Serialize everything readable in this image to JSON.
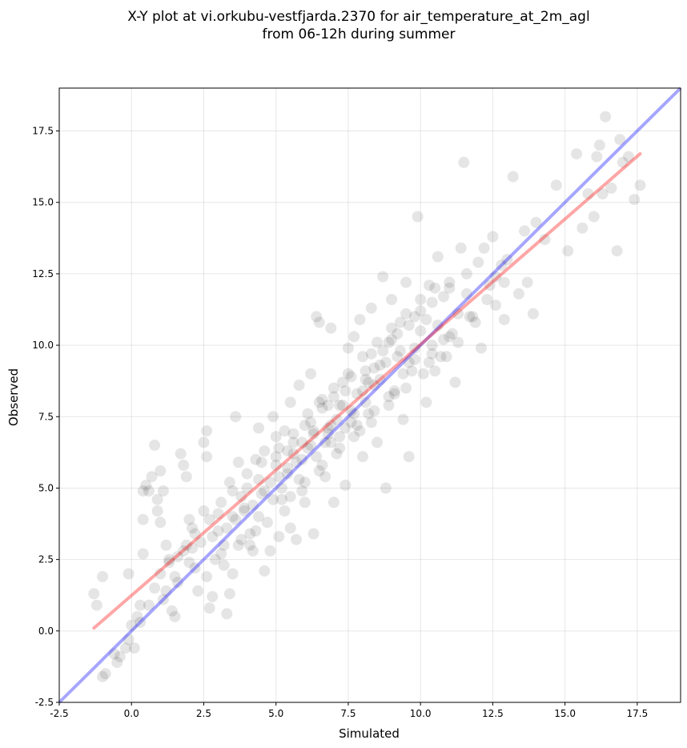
{
  "chart_data": {
    "type": "scatter",
    "title": "X-Y plot at vi.orkubu-vestfjarda.2370 for air_temperature_at_2m_agl",
    "subtitle": "from 06-12h during summer",
    "xlabel": "Simulated",
    "ylabel": "Observed",
    "xlim": [
      -2.5,
      19.0
    ],
    "ylim": [
      -2.5,
      19.0
    ],
    "xticks": [
      "-2.5",
      "0.0",
      "2.5",
      "5.0",
      "7.5",
      "10.0",
      "12.5",
      "15.0",
      "17.5"
    ],
    "yticks": [
      "-2.5",
      "0.0",
      "2.5",
      "5.0",
      "7.5",
      "10.0",
      "12.5",
      "15.0",
      "17.5"
    ],
    "grid": true,
    "legend": "none",
    "marker_color": "#000000",
    "marker_alpha": 0.1,
    "reference_line": {
      "name": "1:1 line",
      "color": "#0000ff",
      "alpha": 0.35,
      "x": [
        -2.5,
        19.0
      ],
      "y": [
        -2.5,
        19.0
      ]
    },
    "regression_line": {
      "name": "linear fit",
      "color": "#ff0000",
      "alpha": 0.35,
      "x": [
        -1.3,
        17.6
      ],
      "y": [
        0.1,
        16.7
      ]
    },
    "series": [
      {
        "points": [
          [
            -1.3,
            1.3
          ],
          [
            -1.2,
            0.9
          ],
          [
            -1.0,
            1.9
          ],
          [
            -0.9,
            -1.5
          ],
          [
            -1.0,
            -1.6
          ],
          [
            -0.6,
            -0.8
          ],
          [
            -0.5,
            -1.1
          ],
          [
            -0.4,
            -0.9
          ],
          [
            -0.2,
            -0.6
          ],
          [
            -0.1,
            -0.3
          ],
          [
            0.0,
            0.2
          ],
          [
            -0.1,
            2.0
          ],
          [
            0.1,
            -0.6
          ],
          [
            0.2,
            0.5
          ],
          [
            0.3,
            0.9
          ],
          [
            0.4,
            2.7
          ],
          [
            0.4,
            3.9
          ],
          [
            0.4,
            4.9
          ],
          [
            0.5,
            5.1
          ],
          [
            0.6,
            4.9
          ],
          [
            0.7,
            5.4
          ],
          [
            0.8,
            6.5
          ],
          [
            0.9,
            4.6
          ],
          [
            0.9,
            4.2
          ],
          [
            1.0,
            3.8
          ],
          [
            1.0,
            5.6
          ],
          [
            1.1,
            4.9
          ],
          [
            1.2,
            3.0
          ],
          [
            1.3,
            2.4
          ],
          [
            1.2,
            1.4
          ],
          [
            1.4,
            0.7
          ],
          [
            1.5,
            0.5
          ],
          [
            1.6,
            2.6
          ],
          [
            1.7,
            6.2
          ],
          [
            1.8,
            5.8
          ],
          [
            1.9,
            5.4
          ],
          [
            2.0,
            3.9
          ],
          [
            2.1,
            2.9
          ],
          [
            2.2,
            2.2
          ],
          [
            2.3,
            1.4
          ],
          [
            2.5,
            6.6
          ],
          [
            2.6,
            7.0
          ],
          [
            2.6,
            6.1
          ],
          [
            2.7,
            0.8
          ],
          [
            2.8,
            1.2
          ],
          [
            3.0,
            3.5
          ],
          [
            3.1,
            2.7
          ],
          [
            3.2,
            3.0
          ],
          [
            3.3,
            0.6
          ],
          [
            3.4,
            1.3
          ],
          [
            3.5,
            2.0
          ],
          [
            3.6,
            7.5
          ],
          [
            3.7,
            5.9
          ],
          [
            3.8,
            4.7
          ],
          [
            3.9,
            4.2
          ],
          [
            4.1,
            3.4
          ],
          [
            4.2,
            2.8
          ],
          [
            4.3,
            6.0
          ],
          [
            4.4,
            7.1
          ],
          [
            4.5,
            4.8
          ],
          [
            4.6,
            2.1
          ],
          [
            4.8,
            2.8
          ],
          [
            4.9,
            7.5
          ],
          [
            5.0,
            6.8
          ],
          [
            5.1,
            3.3
          ],
          [
            5.2,
            4.6
          ],
          [
            5.4,
            5.7
          ],
          [
            5.5,
            8.0
          ],
          [
            5.5,
            3.6
          ],
          [
            5.7,
            3.2
          ],
          [
            5.8,
            8.6
          ],
          [
            6.0,
            4.5
          ],
          [
            6.1,
            6.4
          ],
          [
            6.2,
            9.0
          ],
          [
            6.3,
            3.4
          ],
          [
            6.4,
            11.0
          ],
          [
            6.5,
            10.8
          ],
          [
            6.6,
            8.1
          ],
          [
            6.7,
            5.4
          ],
          [
            6.8,
            7.1
          ],
          [
            6.9,
            10.6
          ],
          [
            7.0,
            4.5
          ],
          [
            7.2,
            6.8
          ],
          [
            7.3,
            8.7
          ],
          [
            7.4,
            5.1
          ],
          [
            7.5,
            9.9
          ],
          [
            7.6,
            7.3
          ],
          [
            7.7,
            10.3
          ],
          [
            7.9,
            10.9
          ],
          [
            8.0,
            6.1
          ],
          [
            8.1,
            8.8
          ],
          [
            8.2,
            7.6
          ],
          [
            8.3,
            11.3
          ],
          [
            8.4,
            9.2
          ],
          [
            8.5,
            6.6
          ],
          [
            8.7,
            12.4
          ],
          [
            8.8,
            5.0
          ],
          [
            8.9,
            10.1
          ],
          [
            9.0,
            11.6
          ],
          [
            9.1,
            8.3
          ],
          [
            9.3,
            10.8
          ],
          [
            9.4,
            7.4
          ],
          [
            9.5,
            12.2
          ],
          [
            9.6,
            6.1
          ],
          [
            9.8,
            9.5
          ],
          [
            9.9,
            14.5
          ],
          [
            10.0,
            11.2
          ],
          [
            10.2,
            8.0
          ],
          [
            10.3,
            12.1
          ],
          [
            10.4,
            10.0
          ],
          [
            10.5,
            9.1
          ],
          [
            10.6,
            13.1
          ],
          [
            10.8,
            11.7
          ],
          [
            10.9,
            9.6
          ],
          [
            11.0,
            12.2
          ],
          [
            11.1,
            10.4
          ],
          [
            11.2,
            8.7
          ],
          [
            11.4,
            13.4
          ],
          [
            11.5,
            16.4
          ],
          [
            11.6,
            12.5
          ],
          [
            11.8,
            11.0
          ],
          [
            12.0,
            12.9
          ],
          [
            12.1,
            9.9
          ],
          [
            12.2,
            13.4
          ],
          [
            12.4,
            12.1
          ],
          [
            12.5,
            13.8
          ],
          [
            12.6,
            11.4
          ],
          [
            12.8,
            12.8
          ],
          [
            12.9,
            10.9
          ],
          [
            13.0,
            13.0
          ],
          [
            13.2,
            15.9
          ],
          [
            13.4,
            11.8
          ],
          [
            13.6,
            14.0
          ],
          [
            13.7,
            12.2
          ],
          [
            13.9,
            11.1
          ],
          [
            14.0,
            14.3
          ],
          [
            14.3,
            13.7
          ],
          [
            14.7,
            15.6
          ],
          [
            15.1,
            13.3
          ],
          [
            15.4,
            16.7
          ],
          [
            15.6,
            14.1
          ],
          [
            15.8,
            15.3
          ],
          [
            16.0,
            14.5
          ],
          [
            16.1,
            16.6
          ],
          [
            16.2,
            17.0
          ],
          [
            16.3,
            15.3
          ],
          [
            16.4,
            18.0
          ],
          [
            16.6,
            15.5
          ],
          [
            16.8,
            13.3
          ],
          [
            17.0,
            16.4
          ],
          [
            17.2,
            16.6
          ],
          [
            17.4,
            15.1
          ],
          [
            17.6,
            15.6
          ],
          [
            16.9,
            17.2
          ],
          [
            3.0,
            4.1
          ],
          [
            3.4,
            5.2
          ],
          [
            4.0,
            5.0
          ],
          [
            4.6,
            6.3
          ],
          [
            5.0,
            5.8
          ],
          [
            5.3,
            7.0
          ],
          [
            5.6,
            6.2
          ],
          [
            6.0,
            7.2
          ],
          [
            6.3,
            6.9
          ],
          [
            6.6,
            7.8
          ],
          [
            7.0,
            8.2
          ],
          [
            7.3,
            7.9
          ],
          [
            7.6,
            8.9
          ],
          [
            8.0,
            8.4
          ],
          [
            8.3,
            9.7
          ],
          [
            8.6,
            9.3
          ],
          [
            9.0,
            10.2
          ],
          [
            9.3,
            9.8
          ],
          [
            9.6,
            10.7
          ],
          [
            10.0,
            10.5
          ],
          [
            3.6,
            3.9
          ],
          [
            4.2,
            4.4
          ],
          [
            4.8,
            5.2
          ],
          [
            5.2,
            5.0
          ],
          [
            5.9,
            6.0
          ],
          [
            6.2,
            6.5
          ],
          [
            6.8,
            6.9
          ],
          [
            7.1,
            7.4
          ],
          [
            7.7,
            7.6
          ],
          [
            8.1,
            8.0
          ],
          [
            2.0,
            2.4
          ],
          [
            2.4,
            3.1
          ],
          [
            2.9,
            2.5
          ],
          [
            3.3,
            3.6
          ],
          [
            3.8,
            3.2
          ],
          [
            4.4,
            4.0
          ],
          [
            4.9,
            4.6
          ],
          [
            5.4,
            5.5
          ],
          [
            5.8,
            5.3
          ],
          [
            6.4,
            6.1
          ],
          [
            6.9,
            6.6
          ],
          [
            7.4,
            7.1
          ],
          [
            7.9,
            7.0
          ],
          [
            8.4,
            8.6
          ],
          [
            8.9,
            8.2
          ],
          [
            9.4,
            9.0
          ],
          [
            9.8,
            9.9
          ],
          [
            10.3,
            9.4
          ],
          [
            10.8,
            10.2
          ],
          [
            11.3,
            11.1
          ],
          [
            1.5,
            1.9
          ],
          [
            1.8,
            2.8
          ],
          [
            2.2,
            3.4
          ],
          [
            2.7,
            3.9
          ],
          [
            3.1,
            4.5
          ],
          [
            3.5,
            4.9
          ],
          [
            4.0,
            5.5
          ],
          [
            4.5,
            5.9
          ],
          [
            5.1,
            6.4
          ],
          [
            5.6,
            6.9
          ],
          [
            6.1,
            7.6
          ],
          [
            6.5,
            8.0
          ],
          [
            7.0,
            8.5
          ],
          [
            7.5,
            9.0
          ],
          [
            8.0,
            9.6
          ],
          [
            8.5,
            10.1
          ],
          [
            9.0,
            10.6
          ],
          [
            9.5,
            11.1
          ],
          [
            10.0,
            11.6
          ],
          [
            10.5,
            12.0
          ],
          [
            4.1,
            3.0
          ],
          [
            4.7,
            3.8
          ],
          [
            5.3,
            4.2
          ],
          [
            5.9,
            4.9
          ],
          [
            6.5,
            5.6
          ],
          [
            7.1,
            6.2
          ],
          [
            7.7,
            6.8
          ],
          [
            8.3,
            7.3
          ],
          [
            8.9,
            7.9
          ],
          [
            9.5,
            8.5
          ],
          [
            10.1,
            9.0
          ],
          [
            10.7,
            9.6
          ],
          [
            11.3,
            10.1
          ],
          [
            11.9,
            10.8
          ],
          [
            2.6,
            1.9
          ],
          [
            3.2,
            2.3
          ],
          [
            3.7,
            3.0
          ],
          [
            4.3,
            3.5
          ],
          [
            5.5,
            4.7
          ],
          [
            6.0,
            5.2
          ],
          [
            6.6,
            5.8
          ],
          [
            7.2,
            6.4
          ],
          [
            7.8,
            7.2
          ],
          [
            8.4,
            7.7
          ],
          [
            9.1,
            8.4
          ],
          [
            9.7,
            9.1
          ],
          [
            10.4,
            9.7
          ],
          [
            11.0,
            10.3
          ],
          [
            11.7,
            11.0
          ],
          [
            12.3,
            11.6
          ],
          [
            12.9,
            12.2
          ],
          [
            4.4,
            5.3
          ],
          [
            5.0,
            6.1
          ],
          [
            5.6,
            6.6
          ],
          [
            6.2,
            7.3
          ],
          [
            6.8,
            7.9
          ],
          [
            7.4,
            8.4
          ],
          [
            8.1,
            9.1
          ],
          [
            8.7,
            9.8
          ],
          [
            9.2,
            10.4
          ],
          [
            9.8,
            11.0
          ],
          [
            10.4,
            11.5
          ],
          [
            11.0,
            12.0
          ],
          [
            3.9,
            4.3
          ],
          [
            4.6,
            4.9
          ],
          [
            5.7,
            5.9
          ],
          [
            6.7,
            6.6
          ],
          [
            7.6,
            7.7
          ],
          [
            8.6,
            8.8
          ],
          [
            9.6,
            9.4
          ],
          [
            10.6,
            10.7
          ],
          [
            11.6,
            11.8
          ],
          [
            12.6,
            12.4
          ],
          [
            2.8,
            3.3
          ],
          [
            3.5,
            4.0
          ],
          [
            5.4,
            6.3
          ],
          [
            6.3,
            7.0
          ],
          [
            7.2,
            7.9
          ],
          [
            8.2,
            8.7
          ],
          [
            9.2,
            9.6
          ],
          [
            10.2,
            10.9
          ],
          [
            5.1,
            5.4
          ],
          [
            5.9,
            6.6
          ],
          [
            6.9,
            7.2
          ],
          [
            7.8,
            8.3
          ],
          [
            8.8,
            9.4
          ],
          [
            0.8,
            1.5
          ],
          [
            1.0,
            2.0
          ],
          [
            1.3,
            2.5
          ],
          [
            1.6,
            1.7
          ],
          [
            1.9,
            3.0
          ],
          [
            2.1,
            3.6
          ],
          [
            2.5,
            4.2
          ],
          [
            1.1,
            1.1
          ],
          [
            0.6,
            0.9
          ],
          [
            0.3,
            0.3
          ]
        ]
      }
    ]
  }
}
